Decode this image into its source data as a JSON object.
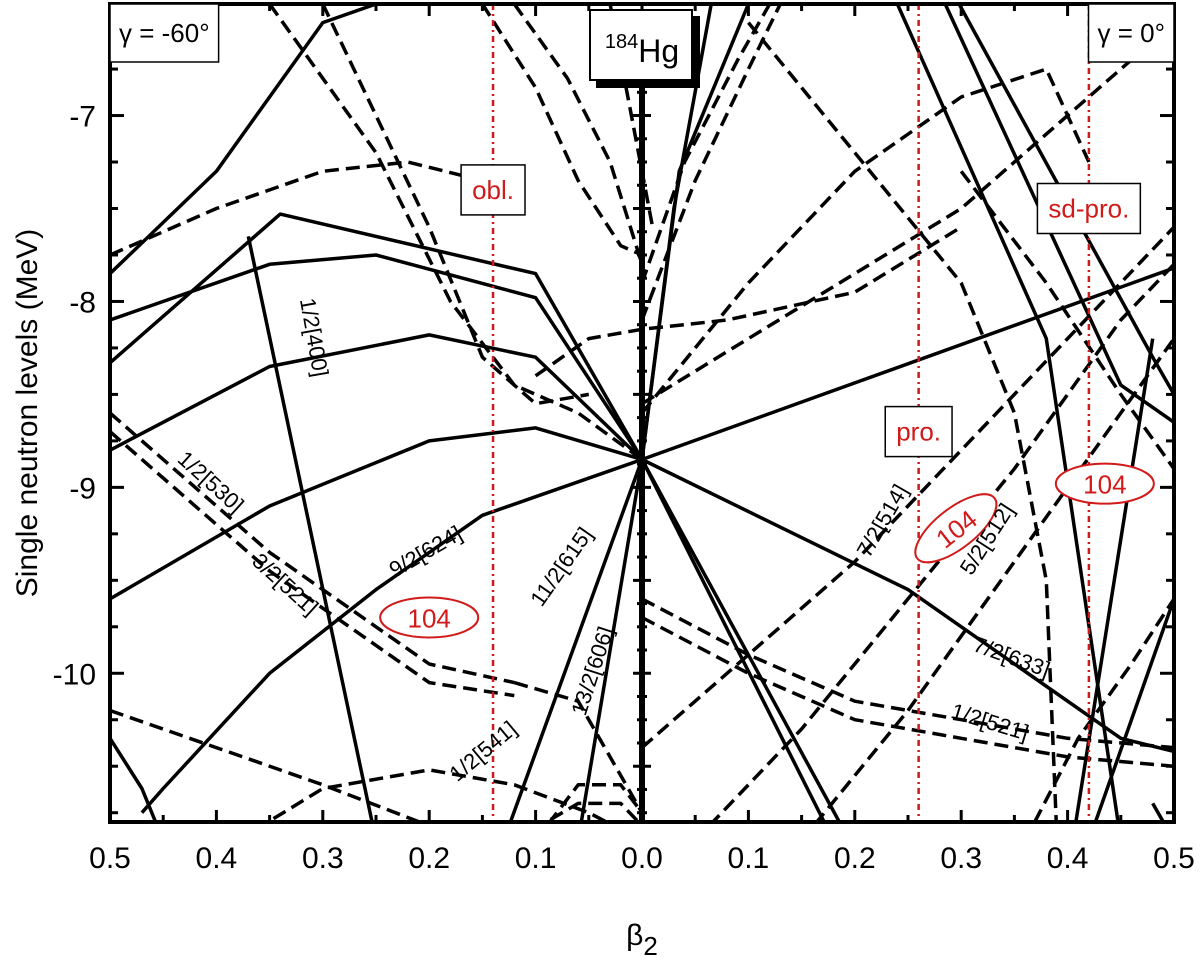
{
  "chart_data": {
    "type": "line",
    "title": "",
    "xlabel": "β",
    "xlabel_sub": "2",
    "ylabel": "Single neutron levels (MeV)",
    "xlim": [
      -0.5,
      0.5
    ],
    "ylim": [
      -10.8,
      -6.4
    ],
    "x_tick_values": [
      -0.5,
      -0.4,
      -0.3,
      -0.2,
      -0.1,
      0.0,
      0.1,
      0.2,
      0.3,
      0.4,
      0.5
    ],
    "x_tick_labels": [
      "0.5",
      "0.4",
      "0.3",
      "0.2",
      "0.1",
      "0.0",
      "0.1",
      "0.2",
      "0.3",
      "0.4",
      "0.5"
    ],
    "y_tick_values": [
      -7,
      -8,
      -9,
      -10
    ],
    "y_tick_labels": [
      "-7",
      "-8",
      "-9",
      "-10"
    ],
    "grid": false,
    "boxes": [
      {
        "text": "γ = -60°",
        "x": -0.5,
        "y": -6.4,
        "anchor": "top-left"
      },
      {
        "text": "γ = 0°",
        "x": 0.5,
        "y": -6.4,
        "anchor": "top-right"
      }
    ],
    "nucleus": {
      "mass": "184",
      "element": "Hg",
      "x": 0.0,
      "y": -6.5
    },
    "vlines": [
      {
        "x": -0.14,
        "label": "obl.",
        "label_y": -7.4
      },
      {
        "x": 0.26,
        "label": "pro.",
        "label_y": -8.7
      },
      {
        "x": 0.42,
        "label": "sd-pro.",
        "label_y": -7.5
      }
    ],
    "shell_gap_marks": [
      {
        "text": "104",
        "x": -0.2,
        "y": -9.7,
        "angle": 0
      },
      {
        "x": 0.295,
        "y": -9.22,
        "text": "104",
        "angle": -38
      },
      {
        "x": 0.435,
        "y": -8.98,
        "text": "104",
        "angle": 0
      }
    ],
    "orbital_labels": [
      {
        "text": "1/2[530]",
        "x": -0.41,
        "y": -9.0,
        "angle": 42
      },
      {
        "text": "3/2[521]",
        "x": -0.34,
        "y": -9.55,
        "angle": 42
      },
      {
        "text": "1/2[400]",
        "x": -0.315,
        "y": -8.2,
        "angle": 80
      },
      {
        "text": "9/2[624]",
        "x": -0.2,
        "y": -9.38,
        "angle": -30
      },
      {
        "text": "11/2[615]",
        "x": -0.07,
        "y": -9.45,
        "angle": -55
      },
      {
        "text": "13/2[606]",
        "x": -0.04,
        "y": -10.0,
        "angle": -72
      },
      {
        "text": "1/2[541]",
        "x": -0.145,
        "y": -10.45,
        "angle": -40
      },
      {
        "text": "7/2[514]",
        "x": 0.232,
        "y": -9.2,
        "angle": -60
      },
      {
        "text": "5/2[512]",
        "x": 0.33,
        "y": -9.3,
        "angle": -57
      },
      {
        "text": "7/2[633]",
        "x": 0.345,
        "y": -9.95,
        "angle": 20
      },
      {
        "text": "1/2[521]",
        "x": 0.325,
        "y": -10.3,
        "angle": 17
      }
    ],
    "series": [
      {
        "style": "solid",
        "x": [
          -0.5,
          -0.35,
          -0.2,
          -0.1,
          0.0
        ],
        "y": [
          -9.6,
          -9.1,
          -8.75,
          -8.68,
          -8.85
        ]
      },
      {
        "style": "solid",
        "x": [
          -0.5,
          -0.35,
          -0.2,
          -0.1,
          0.0
        ],
        "y": [
          -8.8,
          -8.35,
          -8.18,
          -8.3,
          -8.85
        ]
      },
      {
        "style": "solid",
        "x": [
          -0.5,
          -0.35,
          -0.25,
          -0.1,
          0.0
        ],
        "y": [
          -8.1,
          -7.8,
          -7.75,
          -7.98,
          -8.85
        ]
      },
      {
        "style": "solid",
        "x": [
          -0.5,
          -0.34,
          -0.1,
          0.0
        ],
        "y": [
          -8.33,
          -7.53,
          -7.85,
          -8.85
        ]
      },
      {
        "style": "solid",
        "x": [
          -0.5,
          -0.4,
          -0.3,
          -0.2,
          -0.1,
          0.0
        ],
        "y": [
          -7.85,
          -7.3,
          -6.5,
          -6.3,
          -6.2,
          -6.1
        ]
      },
      {
        "style": "solid",
        "x": [
          -0.47,
          -0.45,
          -0.35,
          -0.25,
          -0.15,
          0.0
        ],
        "y": [
          -10.75,
          -10.62,
          -10.0,
          -9.55,
          -9.15,
          -8.85
        ]
      },
      {
        "style": "solid",
        "x": [
          -0.37,
          -0.25
        ],
        "y": [
          -7.65,
          -10.9
        ]
      },
      {
        "style": "solid",
        "x": [
          -0.5,
          -0.47,
          -0.45
        ],
        "y": [
          -10.35,
          -10.62,
          -10.9
        ]
      },
      {
        "style": "solid",
        "x": [
          -0.13,
          0.0
        ],
        "y": [
          -10.9,
          -8.85
        ]
      },
      {
        "style": "solid",
        "x": [
          -0.06,
          0.0
        ],
        "y": [
          -10.9,
          -8.85
        ]
      },
      {
        "style": "solid",
        "x": [
          0.0,
          0.5
        ],
        "y": [
          -8.85,
          -7.82
        ]
      },
      {
        "style": "solid",
        "x": [
          0.0,
          0.25,
          0.45,
          0.5
        ],
        "y": [
          -8.85,
          -9.55,
          -10.35,
          -10.42
        ]
      },
      {
        "style": "solid",
        "x": [
          0.0,
          0.18
        ],
        "y": [
          -8.85,
          -10.9
        ]
      },
      {
        "style": "solid",
        "x": [
          0.0,
          0.195
        ],
        "y": [
          -8.85,
          -10.9
        ]
      },
      {
        "style": "solid",
        "x": [
          0.0,
          0.035,
          0.1
        ],
        "y": [
          -8.85,
          -7.3,
          -6.4
        ]
      },
      {
        "style": "solid",
        "x": [
          0.0,
          0.03,
          0.065
        ],
        "y": [
          -8.85,
          -7.5,
          -6.4
        ]
      },
      {
        "style": "solid",
        "x": [
          0.24,
          0.38,
          0.45
        ],
        "y": [
          -6.4,
          -8.2,
          -10.9
        ]
      },
      {
        "style": "solid",
        "x": [
          0.285,
          0.45,
          0.5
        ],
        "y": [
          -6.4,
          -8.45,
          -8.65
        ]
      },
      {
        "style": "solid",
        "x": [
          0.298,
          0.48,
          0.5
        ],
        "y": [
          -6.4,
          -8.3,
          -8.5
        ]
      },
      {
        "style": "solid",
        "x": [
          0.405,
          0.48
        ],
        "y": [
          -10.9,
          -8.2
        ]
      },
      {
        "style": "solid",
        "x": [
          0.42,
          0.5
        ],
        "y": [
          -10.9,
          -9.6
        ]
      },
      {
        "style": "solid",
        "x": [
          0.48,
          0.5
        ],
        "y": [
          -10.7,
          -10.9
        ]
      },
      {
        "style": "dashed",
        "x": [
          -0.5,
          -0.35,
          -0.2,
          -0.12
        ],
        "y": [
          -8.6,
          -9.35,
          -9.95,
          -10.05
        ]
      },
      {
        "style": "dashed",
        "x": [
          -0.5,
          -0.35,
          -0.2,
          -0.12
        ],
        "y": [
          -8.7,
          -9.45,
          -10.05,
          -10.12
        ]
      },
      {
        "style": "dashed",
        "x": [
          -0.12,
          -0.06,
          0.0
        ],
        "y": [
          -10.05,
          -10.15,
          -10.75
        ]
      },
      {
        "style": "dashed",
        "x": [
          -0.5,
          -0.3,
          -0.2
        ],
        "y": [
          -10.2,
          -10.6,
          -10.82
        ]
      },
      {
        "style": "dashed",
        "x": [
          -0.38,
          -0.3,
          -0.2,
          -0.12,
          -0.05,
          0.0
        ],
        "y": [
          -10.9,
          -10.62,
          -10.52,
          -10.6,
          -10.75,
          -10.9
        ]
      },
      {
        "style": "dashed",
        "x": [
          -0.1,
          -0.06,
          -0.02,
          0.0
        ],
        "y": [
          -10.9,
          -10.6,
          -10.6,
          -10.75
        ]
      },
      {
        "style": "dashed",
        "x": [
          -0.12,
          -0.06,
          -0.02,
          0.0
        ],
        "y": [
          -10.9,
          -10.7,
          -10.7,
          -10.82
        ]
      },
      {
        "style": "dashed",
        "x": [
          -0.5,
          -0.4,
          -0.3,
          -0.22,
          -0.15
        ],
        "y": [
          -7.75,
          -7.5,
          -7.3,
          -7.25,
          -7.35
        ]
      },
      {
        "style": "dashed",
        "x": [
          -0.35,
          -0.25,
          -0.18,
          -0.12,
          -0.06,
          0.0
        ],
        "y": [
          -6.4,
          -7.2,
          -8.0,
          -8.45,
          -8.6,
          -8.85
        ]
      },
      {
        "style": "dashed",
        "x": [
          -0.3,
          -0.2,
          -0.15,
          -0.1,
          -0.05
        ],
        "y": [
          -6.4,
          -7.6,
          -8.3,
          -8.55,
          -8.5
        ]
      },
      {
        "style": "dashed",
        "x": [
          -0.15,
          -0.1,
          -0.06,
          -0.02,
          0.0
        ],
        "y": [
          -6.4,
          -6.85,
          -7.35,
          -7.7,
          -7.75
        ]
      },
      {
        "style": "dashed",
        "x": [
          -0.12,
          -0.07,
          -0.03,
          0.0
        ],
        "y": [
          -6.4,
          -6.8,
          -7.25,
          -7.8
        ]
      },
      {
        "style": "dashed",
        "x": [
          0.0,
          0.04,
          0.09,
          0.12
        ],
        "y": [
          -7.9,
          -7.25,
          -6.7,
          -6.4
        ]
      },
      {
        "style": "dashed",
        "x": [
          0.0,
          0.05,
          0.1,
          0.13
        ],
        "y": [
          -8.1,
          -7.35,
          -6.75,
          -6.4
        ]
      },
      {
        "style": "dashed",
        "x": [
          -0.1,
          -0.05,
          0.0,
          0.08,
          0.2,
          0.3
        ],
        "y": [
          -8.4,
          -8.2,
          -8.15,
          -8.1,
          -7.95,
          -7.6
        ]
      },
      {
        "style": "dashed",
        "x": [
          0.0,
          0.1,
          0.2,
          0.3,
          0.4,
          0.5
        ],
        "y": [
          -8.55,
          -8.2,
          -7.85,
          -7.5,
          -7.0,
          -6.5
        ]
      },
      {
        "style": "dashed",
        "x": [
          0.0,
          0.1,
          0.2,
          0.3,
          0.38,
          0.42
        ],
        "y": [
          -8.6,
          -7.9,
          -7.3,
          -6.9,
          -6.75,
          -7.25
        ]
      },
      {
        "style": "dashed",
        "x": [
          0.0,
          0.1,
          0.2,
          0.3,
          0.4,
          0.5
        ],
        "y": [
          -10.4,
          -9.9,
          -9.4,
          -8.8,
          -8.2,
          -7.6
        ]
      },
      {
        "style": "dashed",
        "x": [
          0.05,
          0.15,
          0.25,
          0.35,
          0.45,
          0.5
        ],
        "y": [
          -10.9,
          -10.3,
          -9.6,
          -8.9,
          -8.1,
          -7.8
        ]
      },
      {
        "style": "dashed",
        "x": [
          0.15,
          0.25,
          0.35,
          0.45,
          0.5
        ],
        "y": [
          -10.9,
          -10.2,
          -9.4,
          -8.6,
          -8.2
        ]
      },
      {
        "style": "dashed",
        "x": [
          0.0,
          0.1,
          0.2,
          0.3,
          0.4,
          0.5
        ],
        "y": [
          -9.7,
          -10.0,
          -10.25,
          -10.35,
          -10.45,
          -10.5
        ]
      },
      {
        "style": "dashed",
        "x": [
          0.0,
          0.1,
          0.2,
          0.3,
          0.4,
          0.5
        ],
        "y": [
          -9.6,
          -9.9,
          -10.15,
          -10.25,
          -10.35,
          -10.4
        ]
      },
      {
        "style": "dashed",
        "x": [
          0.1,
          0.2,
          0.3,
          0.35,
          0.38,
          0.39
        ],
        "y": [
          -6.5,
          -7.2,
          -7.9,
          -8.6,
          -9.5,
          -10.9
        ]
      },
      {
        "style": "dashed",
        "x": [
          0.36,
          0.41,
          0.46,
          0.5
        ],
        "y": [
          -10.9,
          -10.35,
          -9.95,
          -9.6
        ]
      },
      {
        "style": "dashed",
        "x": [
          -0.03,
          -0.01,
          0.01
        ],
        "y": [
          -6.4,
          -7.0,
          -7.6
        ]
      },
      {
        "style": "dashed",
        "x": [
          0.3,
          0.38,
          0.45,
          0.5
        ],
        "y": [
          -7.3,
          -7.9,
          -8.5,
          -8.9
        ]
      }
    ]
  }
}
